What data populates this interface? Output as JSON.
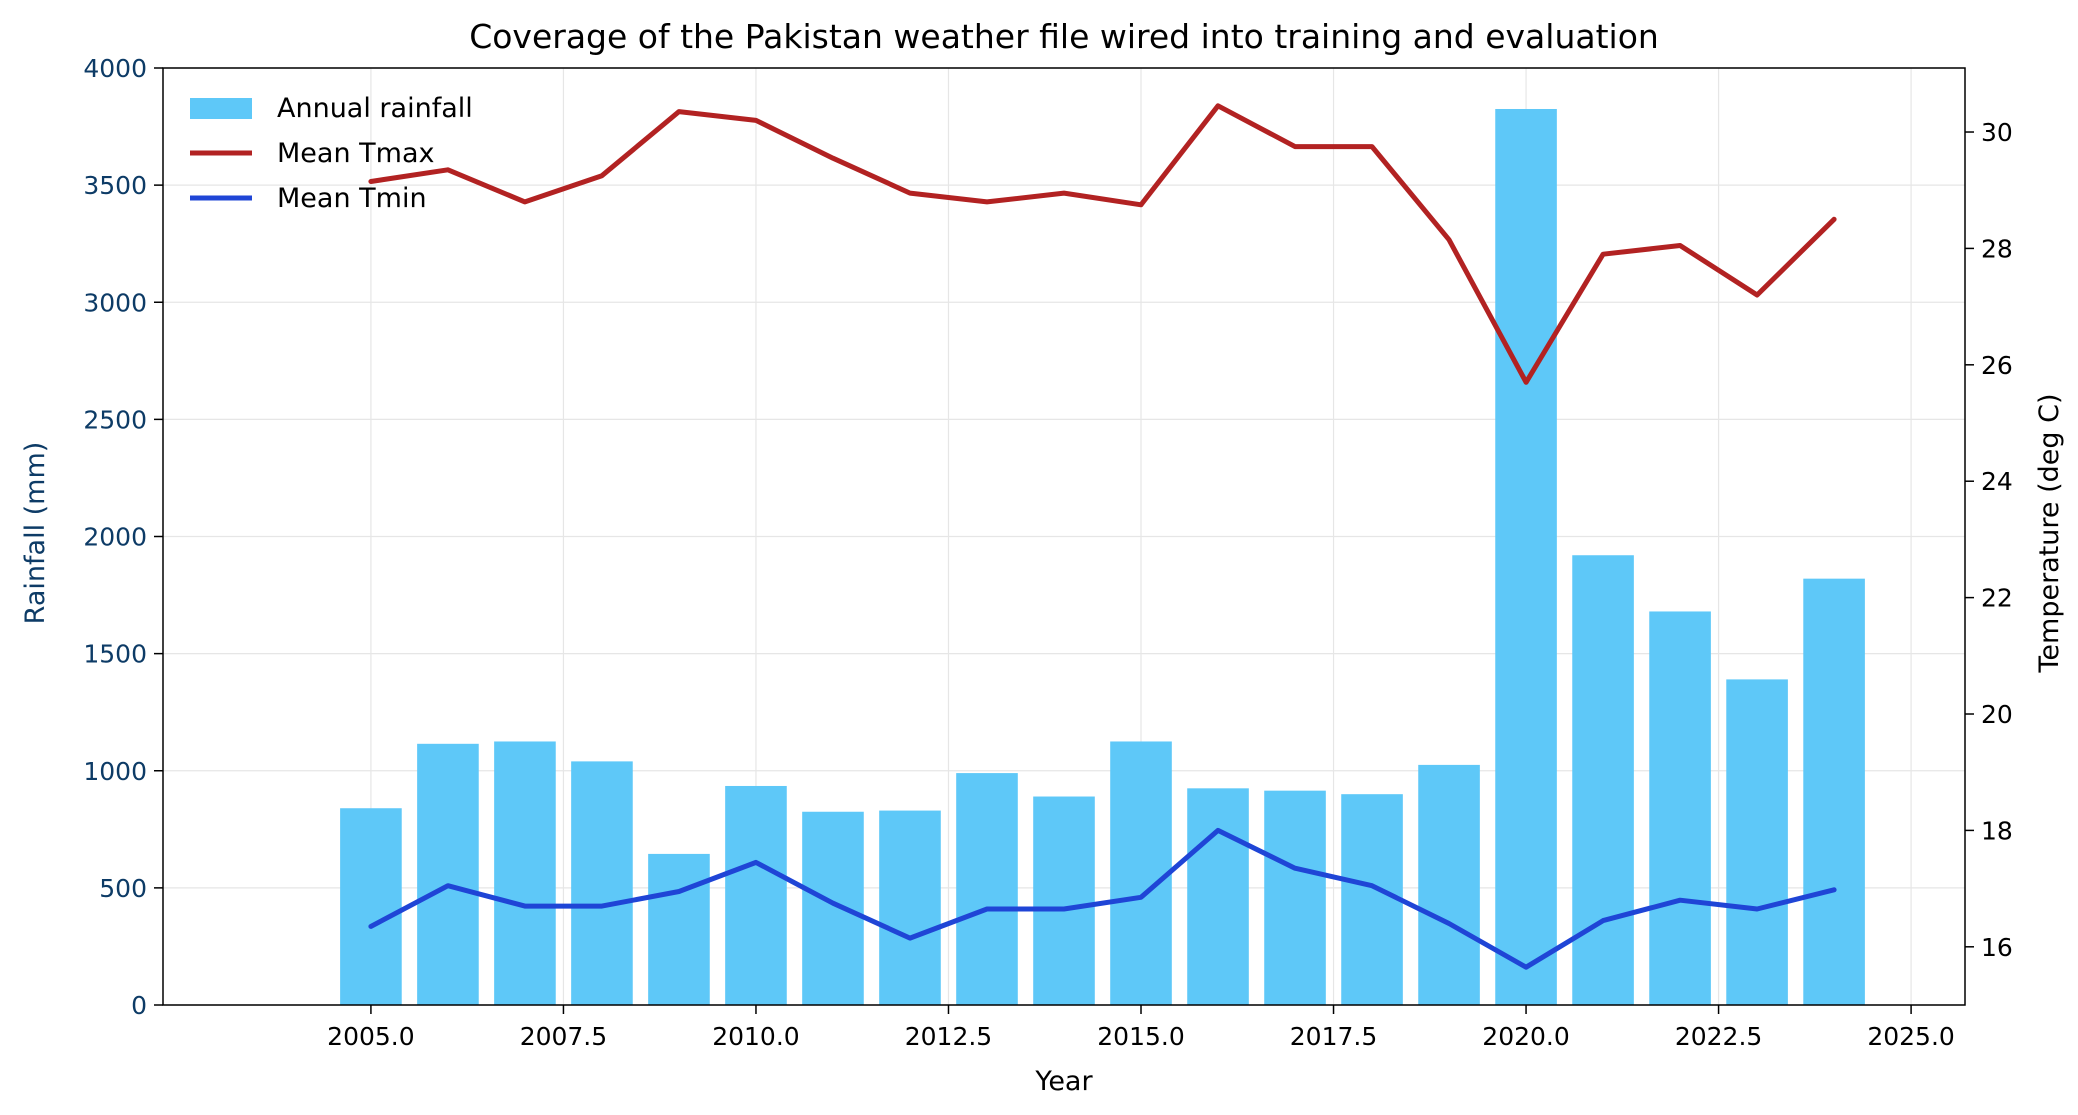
{
  "chart_data": {
    "type": "bar",
    "title": "Coverage of the Pakistan weather file wired into training and evaluation",
    "xlabel": "Year",
    "ylabel_left": "Rainfall (mm)",
    "ylabel_right": "Temperature (deg C)",
    "xlim": [
      2002.3,
      2025.7
    ],
    "ylim_left": [
      0,
      4000
    ],
    "ylim_right": [
      15,
      31.1
    ],
    "x_ticks": [
      2005.0,
      2007.5,
      2010.0,
      2012.5,
      2015.0,
      2017.5,
      2020.0,
      2022.5,
      2025.0
    ],
    "x_tick_labels": [
      "2005.0",
      "2007.5",
      "2010.0",
      "2012.5",
      "2015.0",
      "2017.5",
      "2020.0",
      "2022.5",
      "2025.0"
    ],
    "y_left_ticks": [
      0,
      500,
      1000,
      1500,
      2000,
      2500,
      3000,
      3500,
      4000
    ],
    "y_left_tick_labels": [
      "0",
      "500",
      "1000",
      "1500",
      "2000",
      "2500",
      "3000",
      "3500",
      "4000"
    ],
    "y_right_ticks": [
      16,
      18,
      20,
      22,
      24,
      26,
      28,
      30
    ],
    "y_right_tick_labels": [
      "16",
      "18",
      "20",
      "22",
      "24",
      "26",
      "28",
      "30"
    ],
    "grid": true,
    "legend_position": "top-left",
    "x": [
      2005,
      2006,
      2007,
      2008,
      2009,
      2010,
      2011,
      2012,
      2013,
      2014,
      2015,
      2016,
      2017,
      2018,
      2019,
      2020,
      2021,
      2022,
      2023,
      2024
    ],
    "series": [
      {
        "name": "Annual rainfall",
        "type": "bar",
        "axis": "left",
        "color": "#5ec8f8",
        "values": [
          840,
          1115,
          1125,
          1040,
          645,
          935,
          825,
          830,
          990,
          890,
          1125,
          925,
          915,
          900,
          1025,
          3825,
          1920,
          1680,
          1390,
          1820
        ]
      },
      {
        "name": "Mean Tmax",
        "type": "line",
        "axis": "right",
        "color": "#b22222",
        "values": [
          29.15,
          29.35,
          28.8,
          29.25,
          30.35,
          30.2,
          29.55,
          28.95,
          28.8,
          28.95,
          28.75,
          30.45,
          29.75,
          29.75,
          28.15,
          25.7,
          27.9,
          28.05,
          27.2,
          28.5
        ]
      },
      {
        "name": "Mean Tmin",
        "type": "line",
        "axis": "right",
        "color": "#1f45d6",
        "values": [
          16.35,
          17.05,
          16.7,
          16.7,
          16.95,
          17.45,
          16.75,
          16.15,
          16.65,
          16.65,
          16.85,
          18.0,
          17.35,
          17.05,
          16.4,
          15.65,
          16.45,
          16.8,
          16.65,
          16.98
        ]
      }
    ]
  }
}
